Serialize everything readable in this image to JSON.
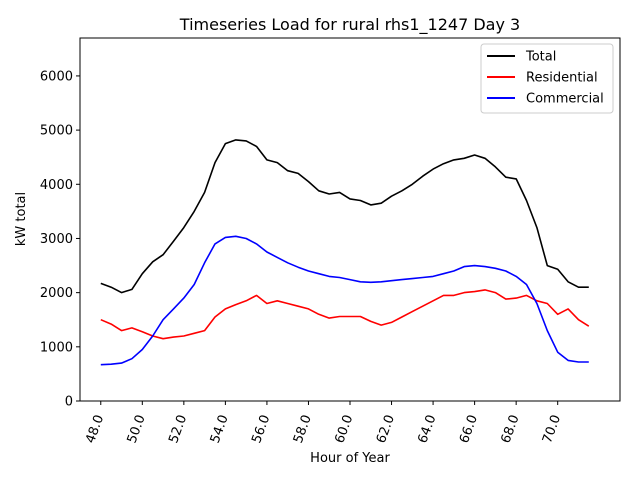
{
  "chart_data": {
    "type": "line",
    "title": "Timeseries Load for rural rhs1_1247  Day 3",
    "xlabel": "Hour of Year",
    "ylabel": "kW total",
    "xlim": [
      47.0,
      73.0
    ],
    "ylim": [
      0,
      6700
    ],
    "grid": false,
    "legend_position": "top-right",
    "x_ticks": [
      48,
      50,
      52,
      54,
      56,
      58,
      60,
      62,
      64,
      66,
      68,
      70
    ],
    "x_tick_labels": [
      "48.0",
      "50.0",
      "52.0",
      "54.0",
      "56.0",
      "58.0",
      "60.0",
      "62.0",
      "64.0",
      "66.0",
      "68.0",
      "70.0"
    ],
    "y_ticks": [
      0,
      1000,
      2000,
      3000,
      4000,
      5000,
      6000
    ],
    "y_tick_labels": [
      "0",
      "1000",
      "2000",
      "3000",
      "4000",
      "5000",
      "6000"
    ],
    "series": [
      {
        "name": "Total",
        "color": "#000000",
        "x": [
          48.0,
          48.5,
          49.0,
          49.5,
          50.0,
          50.5,
          51.0,
          51.5,
          52.0,
          52.5,
          53.0,
          53.5,
          54.0,
          54.5,
          55.0,
          55.5,
          56.0,
          56.5,
          57.0,
          57.5,
          58.0,
          58.5,
          59.0,
          59.5,
          60.0,
          60.5,
          61.0,
          61.5,
          62.0,
          62.5,
          63.0,
          63.5,
          64.0,
          64.5,
          65.0,
          65.5,
          66.0,
          66.5,
          67.0,
          67.5,
          68.0,
          68.5,
          69.0,
          69.5,
          70.0,
          70.5,
          71.0,
          71.5
        ],
        "values": [
          2170,
          2100,
          2000,
          2060,
          2350,
          2570,
          2700,
          2950,
          3200,
          3500,
          3850,
          4400,
          4750,
          4820,
          4800,
          4700,
          4450,
          4400,
          4250,
          4200,
          4050,
          3880,
          3820,
          3850,
          3730,
          3700,
          3620,
          3650,
          3780,
          3880,
          4000,
          4150,
          4280,
          4380,
          4450,
          4480,
          4540,
          4480,
          4320,
          4130,
          4100,
          3700,
          3200,
          2500,
          2430,
          2200,
          2100,
          2100
        ]
      },
      {
        "name": "Residential",
        "color": "#ff0000",
        "x": [
          48.0,
          48.5,
          49.0,
          49.5,
          50.0,
          50.5,
          51.0,
          51.5,
          52.0,
          52.5,
          53.0,
          53.5,
          54.0,
          54.5,
          55.0,
          55.5,
          56.0,
          56.5,
          57.0,
          57.5,
          58.0,
          58.5,
          59.0,
          59.5,
          60.0,
          60.5,
          61.0,
          61.5,
          62.0,
          62.5,
          63.0,
          63.5,
          64.0,
          64.5,
          65.0,
          65.5,
          66.0,
          66.5,
          67.0,
          67.5,
          68.0,
          68.5,
          69.0,
          69.5,
          70.0,
          70.5,
          71.0,
          71.5
        ],
        "values": [
          1500,
          1420,
          1300,
          1350,
          1280,
          1200,
          1150,
          1180,
          1200,
          1250,
          1300,
          1550,
          1700,
          1780,
          1850,
          1950,
          1800,
          1850,
          1800,
          1750,
          1700,
          1600,
          1530,
          1560,
          1560,
          1560,
          1470,
          1400,
          1450,
          1550,
          1650,
          1750,
          1850,
          1950,
          1950,
          2000,
          2020,
          2050,
          2000,
          1880,
          1900,
          1950,
          1850,
          1800,
          1600,
          1700,
          1500,
          1380
        ]
      },
      {
        "name": "Commercial",
        "color": "#0000ff",
        "x": [
          48.0,
          48.5,
          49.0,
          49.5,
          50.0,
          50.5,
          51.0,
          51.5,
          52.0,
          52.5,
          53.0,
          53.5,
          54.0,
          54.5,
          55.0,
          55.5,
          56.0,
          56.5,
          57.0,
          57.5,
          58.0,
          58.5,
          59.0,
          59.5,
          60.0,
          60.5,
          61.0,
          61.5,
          62.0,
          62.5,
          63.0,
          63.5,
          64.0,
          64.5,
          65.0,
          65.5,
          66.0,
          66.5,
          67.0,
          67.5,
          68.0,
          68.5,
          69.0,
          69.5,
          70.0,
          70.5,
          71.0,
          71.5
        ],
        "values": [
          670,
          680,
          700,
          780,
          950,
          1200,
          1500,
          1700,
          1900,
          2150,
          2550,
          2900,
          3020,
          3040,
          3000,
          2900,
          2750,
          2650,
          2550,
          2470,
          2400,
          2350,
          2300,
          2280,
          2240,
          2200,
          2190,
          2200,
          2220,
          2240,
          2260,
          2280,
          2300,
          2350,
          2400,
          2480,
          2500,
          2480,
          2450,
          2400,
          2300,
          2150,
          1800,
          1300,
          900,
          750,
          720,
          720
        ]
      }
    ]
  }
}
